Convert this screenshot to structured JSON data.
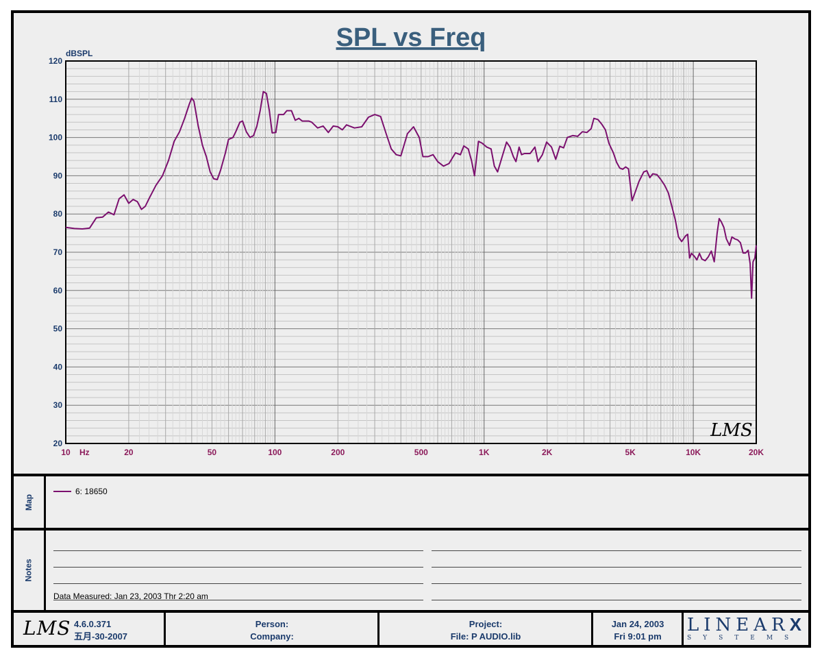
{
  "chart_data": {
    "type": "line",
    "title": "SPL vs Freq",
    "ylabel": "dBSPL",
    "x_unit_label": "Hz",
    "x_scale": "log",
    "xlim": [
      10,
      20000
    ],
    "ylim": [
      20,
      120
    ],
    "grid": true,
    "y_ticks": [
      20,
      30,
      40,
      50,
      60,
      70,
      80,
      90,
      100,
      110,
      120
    ],
    "x_tick_labels": [
      {
        "value": 10,
        "label": "10"
      },
      {
        "value": 20,
        "label": "20"
      },
      {
        "value": 50,
        "label": "50"
      },
      {
        "value": 100,
        "label": "100"
      },
      {
        "value": 200,
        "label": "200"
      },
      {
        "value": 500,
        "label": "500"
      },
      {
        "value": 1000,
        "label": "1K"
      },
      {
        "value": 2000,
        "label": "2K"
      },
      {
        "value": 5000,
        "label": "5K"
      },
      {
        "value": 10000,
        "label": "10K"
      },
      {
        "value": 20000,
        "label": "20K"
      }
    ],
    "watermark": "LMS",
    "series": [
      {
        "name": "6: 18650",
        "color": "#7b0f6e",
        "points": [
          [
            10,
            76.5
          ],
          [
            11,
            76.2
          ],
          [
            12,
            76.1
          ],
          [
            13,
            76.3
          ],
          [
            14,
            79
          ],
          [
            15,
            79.2
          ],
          [
            16,
            80.5
          ],
          [
            17,
            79.8
          ],
          [
            18,
            84
          ],
          [
            19,
            85
          ],
          [
            20,
            82.8
          ],
          [
            21,
            83.8
          ],
          [
            22,
            83.2
          ],
          [
            23,
            81.2
          ],
          [
            24,
            82
          ],
          [
            25,
            84
          ],
          [
            27,
            87.5
          ],
          [
            29,
            90
          ],
          [
            31,
            94
          ],
          [
            33,
            99
          ],
          [
            35,
            101.5
          ],
          [
            37,
            105
          ],
          [
            39,
            108.8
          ],
          [
            40,
            110.3
          ],
          [
            41,
            109.5
          ],
          [
            43,
            103
          ],
          [
            45,
            98
          ],
          [
            47,
            95
          ],
          [
            49,
            91
          ],
          [
            51,
            89.2
          ],
          [
            53,
            89
          ],
          [
            55,
            91.5
          ],
          [
            58,
            96
          ],
          [
            60,
            99.5
          ],
          [
            63,
            100
          ],
          [
            65,
            101.5
          ],
          [
            68,
            104
          ],
          [
            70,
            104.3
          ],
          [
            73,
            101.5
          ],
          [
            76,
            100
          ],
          [
            79,
            100.5
          ],
          [
            82,
            103
          ],
          [
            85,
            107
          ],
          [
            88,
            112
          ],
          [
            91,
            111.5
          ],
          [
            94,
            107
          ],
          [
            97,
            101.2
          ],
          [
            101,
            101.3
          ],
          [
            104,
            106
          ],
          [
            110,
            106
          ],
          [
            114,
            107
          ],
          [
            120,
            107
          ],
          [
            125,
            104.5
          ],
          [
            130,
            105
          ],
          [
            135,
            104.3
          ],
          [
            145,
            104.3
          ],
          [
            150,
            104
          ],
          [
            160,
            102.5
          ],
          [
            170,
            103
          ],
          [
            180,
            101.3
          ],
          [
            190,
            103
          ],
          [
            200,
            102.8
          ],
          [
            210,
            102
          ],
          [
            220,
            103.3
          ],
          [
            240,
            102.5
          ],
          [
            260,
            102.8
          ],
          [
            280,
            105.3
          ],
          [
            300,
            106
          ],
          [
            320,
            105.5
          ],
          [
            340,
            101
          ],
          [
            360,
            97
          ],
          [
            380,
            95.5
          ],
          [
            400,
            95.2
          ],
          [
            430,
            101
          ],
          [
            460,
            102.8
          ],
          [
            490,
            100
          ],
          [
            510,
            95
          ],
          [
            540,
            95
          ],
          [
            570,
            95.5
          ],
          [
            600,
            93.7
          ],
          [
            640,
            92.5
          ],
          [
            680,
            93.2
          ],
          [
            730,
            96
          ],
          [
            770,
            95.5
          ],
          [
            800,
            97.8
          ],
          [
            840,
            97
          ],
          [
            870,
            94
          ],
          [
            900,
            90
          ],
          [
            940,
            99
          ],
          [
            980,
            98.5
          ],
          [
            1030,
            97.5
          ],
          [
            1080,
            97
          ],
          [
            1120,
            92.5
          ],
          [
            1160,
            91
          ],
          [
            1220,
            95
          ],
          [
            1280,
            98.8
          ],
          [
            1330,
            97.5
          ],
          [
            1380,
            95
          ],
          [
            1420,
            93.7
          ],
          [
            1470,
            97.5
          ],
          [
            1510,
            95.5
          ],
          [
            1560,
            95.8
          ],
          [
            1660,
            95.8
          ],
          [
            1750,
            97.5
          ],
          [
            1810,
            93.7
          ],
          [
            1900,
            95.5
          ],
          [
            1990,
            98.8
          ],
          [
            2100,
            97.5
          ],
          [
            2200,
            94.3
          ],
          [
            2300,
            97.7
          ],
          [
            2400,
            97.3
          ],
          [
            2500,
            100
          ],
          [
            2650,
            100.5
          ],
          [
            2800,
            100.3
          ],
          [
            2950,
            101.5
          ],
          [
            3100,
            101.3
          ],
          [
            3250,
            102.3
          ],
          [
            3350,
            105
          ],
          [
            3500,
            104.7
          ],
          [
            3650,
            103.5
          ],
          [
            3800,
            102
          ],
          [
            3950,
            98.5
          ],
          [
            4150,
            96
          ],
          [
            4300,
            93.5
          ],
          [
            4450,
            92
          ],
          [
            4600,
            91.7
          ],
          [
            4750,
            92.3
          ],
          [
            4900,
            91.8
          ],
          [
            5100,
            83.5
          ],
          [
            5300,
            86
          ],
          [
            5500,
            88.5
          ],
          [
            5800,
            91
          ],
          [
            6000,
            91.3
          ],
          [
            6200,
            89.5
          ],
          [
            6400,
            90.5
          ],
          [
            6700,
            90.3
          ],
          [
            7000,
            89
          ],
          [
            7300,
            87.5
          ],
          [
            7600,
            85.5
          ],
          [
            7900,
            82
          ],
          [
            8200,
            78.5
          ],
          [
            8500,
            74
          ],
          [
            8800,
            72.8
          ],
          [
            9200,
            74.3
          ],
          [
            9400,
            74.7
          ],
          [
            9600,
            68.5
          ],
          [
            9800,
            69.7
          ],
          [
            10100,
            69
          ],
          [
            10400,
            68
          ],
          [
            10700,
            69.7
          ],
          [
            11000,
            68.2
          ],
          [
            11400,
            67.8
          ],
          [
            11800,
            68.8
          ],
          [
            12200,
            70.3
          ],
          [
            12600,
            67.5
          ],
          [
            13000,
            75
          ],
          [
            13300,
            78.8
          ],
          [
            13600,
            78
          ],
          [
            14000,
            76.5
          ],
          [
            14400,
            73.5
          ],
          [
            14900,
            71.8
          ],
          [
            15300,
            74
          ],
          [
            15800,
            73.5
          ],
          [
            16300,
            73.2
          ],
          [
            16800,
            72.5
          ],
          [
            17300,
            69.8
          ],
          [
            17800,
            69.8
          ],
          [
            18300,
            70.5
          ],
          [
            18700,
            67
          ],
          [
            19000,
            58
          ],
          [
            19300,
            67.5
          ],
          [
            19700,
            68.5
          ],
          [
            20000,
            71.8
          ]
        ]
      }
    ]
  },
  "map_panel": {
    "label": "Map",
    "legend_entry": "6: 18650"
  },
  "notes_panel": {
    "label": "Notes",
    "data_measured": "Data Measured: Jan 23, 2003  Thr  2:20 am"
  },
  "footer": {
    "logo_text": "LMS",
    "version": "4.6.0.371",
    "build_date": "五月-30-2007",
    "person_label": "Person:",
    "company_label": "Company:",
    "project_label": "Project:",
    "file_label": "File: P AUDIO.lib",
    "date": "Jan 24, 2003",
    "time": "Fri  9:01 pm",
    "brand_big": "LINEAR",
    "brand_x": "X",
    "brand_small": "SYSTEMS"
  }
}
